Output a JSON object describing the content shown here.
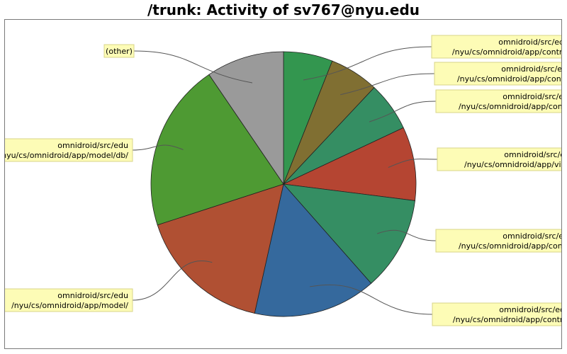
{
  "chart_data": {
    "type": "pie",
    "title": "/trunk: Activity of sv767@nyu.edu",
    "slices": [
      {
        "label": [
          "omnidroid/src/edu",
          "/nyu/cs/omnidroid/app/control"
        ],
        "value": 6.0,
        "color": "#33964f"
      },
      {
        "label": [
          "omnidroid/src/edu",
          "/nyu/cs/omnidroid/app/contro"
        ],
        "value": 6.0,
        "color": "#806f32"
      },
      {
        "label": [
          "omnidroid/src/edu",
          "/nyu/cs/omnidroid/app/contro"
        ],
        "value": 6.0,
        "color": "#358e63"
      },
      {
        "label": [
          "omnidroid/src/edu",
          "/nyu/cs/omnidroid/app/view/"
        ],
        "value": 9.0,
        "color": "#b54532"
      },
      {
        "label": [
          "omnidroid/src/edu",
          "/nyu/cs/omnidroid/app/contro"
        ],
        "value": 11.5,
        "color": "#358e63"
      },
      {
        "label": [
          "omnidroid/src/edu",
          "/nyu/cs/omnidroid/app/control"
        ],
        "value": 15.0,
        "color": "#35699d"
      },
      {
        "label": [
          "omnidroid/src/edu",
          "/nyu/cs/omnidroid/app/model/"
        ],
        "value": 16.5,
        "color": "#b05033"
      },
      {
        "label": [
          "omnidroid/src/edu",
          "/nyu/cs/omnidroid/app/model/db/"
        ],
        "value": 20.5,
        "color": "#4e9a33"
      },
      {
        "label": [
          "(other)"
        ],
        "value": 9.5,
        "color": "#9a9a9a"
      }
    ]
  }
}
